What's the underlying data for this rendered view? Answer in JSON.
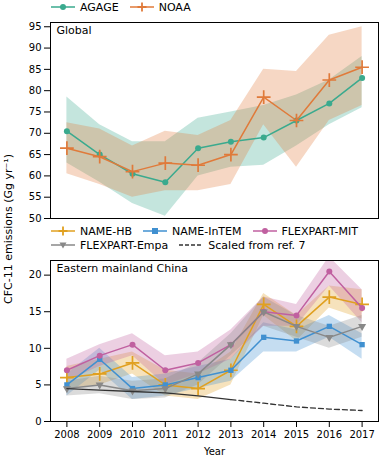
{
  "chart_data": [
    {
      "type": "line",
      "annotation": "Global",
      "ylabel": "CFC-11 emissions (Gg yr⁻¹)",
      "x": [
        2008,
        2009,
        2010,
        2011,
        2012,
        2013,
        2014,
        2015,
        2016,
        2017
      ],
      "xlim": [
        2007.5,
        2017.5
      ],
      "ylim": [
        50.0,
        96.0
      ],
      "yticks": [
        50,
        55,
        60,
        65,
        70,
        75,
        80,
        85,
        90,
        95
      ],
      "tick_labels": "y",
      "legend": "upper left",
      "series": [
        {
          "name": "AGAGE",
          "color": "#3aaa8e",
          "marker": "circle",
          "values": [
            70.5,
            65.0,
            60.5,
            58.5,
            66.5,
            68.0,
            69.0,
            73.0,
            77.0,
            83.0
          ],
          "upper": [
            78.5,
            72.0,
            68.0,
            68.0,
            73.5,
            75.0,
            76.5,
            79.0,
            82.5,
            88.0
          ],
          "lower": [
            63.0,
            58.5,
            53.5,
            50.5,
            60.0,
            62.0,
            62.5,
            67.0,
            72.0,
            76.0
          ]
        },
        {
          "name": "NOAA",
          "color": "#e07a3a",
          "marker": "plus",
          "values": [
            66.5,
            64.5,
            61.0,
            63.0,
            62.5,
            65.0,
            78.5,
            73.0,
            82.5,
            85.5
          ],
          "upper": [
            72.5,
            71.0,
            67.0,
            70.5,
            69.5,
            73.0,
            85.0,
            84.5,
            93.0,
            95.0
          ],
          "lower": [
            60.5,
            58.0,
            55.0,
            56.5,
            56.5,
            58.0,
            72.0,
            62.0,
            73.0,
            76.5
          ]
        }
      ]
    },
    {
      "type": "line",
      "annotation": "Eastern mainland China",
      "xlabel": "Year",
      "x": [
        2008,
        2009,
        2010,
        2011,
        2012,
        2013,
        2014,
        2015,
        2016,
        2017
      ],
      "xlim": [
        2007.5,
        2017.5
      ],
      "xticks": [
        2008,
        2009,
        2010,
        2011,
        2012,
        2013,
        2014,
        2015,
        2016,
        2017
      ],
      "ylim": [
        0.0,
        22.0
      ],
      "yticks": [
        0,
        5,
        10,
        15,
        20
      ],
      "legend": "upper left",
      "series": [
        {
          "name": "NAME-HB",
          "color": "#e0a020",
          "marker": "plus",
          "values": [
            6.0,
            6.5,
            8.0,
            5.0,
            4.5,
            7.0,
            16.0,
            13.0,
            17.0,
            16.0
          ],
          "upper": [
            7.5,
            8.5,
            9.5,
            7.0,
            6.5,
            9.5,
            17.5,
            14.5,
            18.5,
            18.0
          ],
          "lower": [
            4.5,
            5.0,
            6.5,
            3.5,
            3.0,
            5.0,
            14.5,
            11.0,
            15.5,
            14.0
          ]
        },
        {
          "name": "NAME-InTEM",
          "color": "#4090d0",
          "marker": "square",
          "values": [
            5.0,
            8.5,
            4.5,
            5.0,
            6.0,
            7.0,
            11.5,
            11.0,
            13.0,
            10.5
          ],
          "upper": [
            6.5,
            10.0,
            6.0,
            6.5,
            7.5,
            8.5,
            13.5,
            12.5,
            14.5,
            12.0
          ],
          "lower": [
            3.5,
            7.0,
            3.0,
            3.5,
            4.5,
            5.5,
            9.5,
            9.5,
            11.5,
            8.5
          ]
        },
        {
          "name": "FLEXPART-MIT",
          "color": "#c060a0",
          "marker": "circle",
          "values": [
            7.0,
            9.0,
            10.5,
            7.0,
            8.0,
            10.5,
            15.0,
            14.5,
            20.5,
            15.5
          ],
          "upper": [
            8.5,
            10.5,
            12.0,
            9.0,
            9.5,
            12.5,
            17.0,
            16.0,
            22.5,
            18.0
          ],
          "lower": [
            5.5,
            7.5,
            9.0,
            5.0,
            6.5,
            8.5,
            13.0,
            13.0,
            18.5,
            13.5
          ]
        },
        {
          "name": "FLEXPART-Empa",
          "color": "#888888",
          "marker": "triangle_down",
          "values": [
            4.5,
            5.0,
            4.2,
            4.5,
            6.5,
            10.5,
            15.0,
            13.0,
            11.5,
            13.0
          ],
          "upper": [
            5.5,
            6.2,
            5.5,
            5.8,
            8.0,
            12.0,
            17.0,
            14.5,
            13.0,
            14.5
          ],
          "lower": [
            3.5,
            3.8,
            3.0,
            3.2,
            5.0,
            9.0,
            13.0,
            11.5,
            10.0,
            11.5
          ]
        },
        {
          "name": "Scaled from ref. 7",
          "color": "#333333",
          "line_style": "dashed",
          "solid_until": 2013,
          "values": [
            4.5,
            4.3,
            4.1,
            3.9,
            3.5,
            3.0,
            2.5,
            2.0,
            1.7,
            1.5
          ]
        }
      ]
    }
  ]
}
